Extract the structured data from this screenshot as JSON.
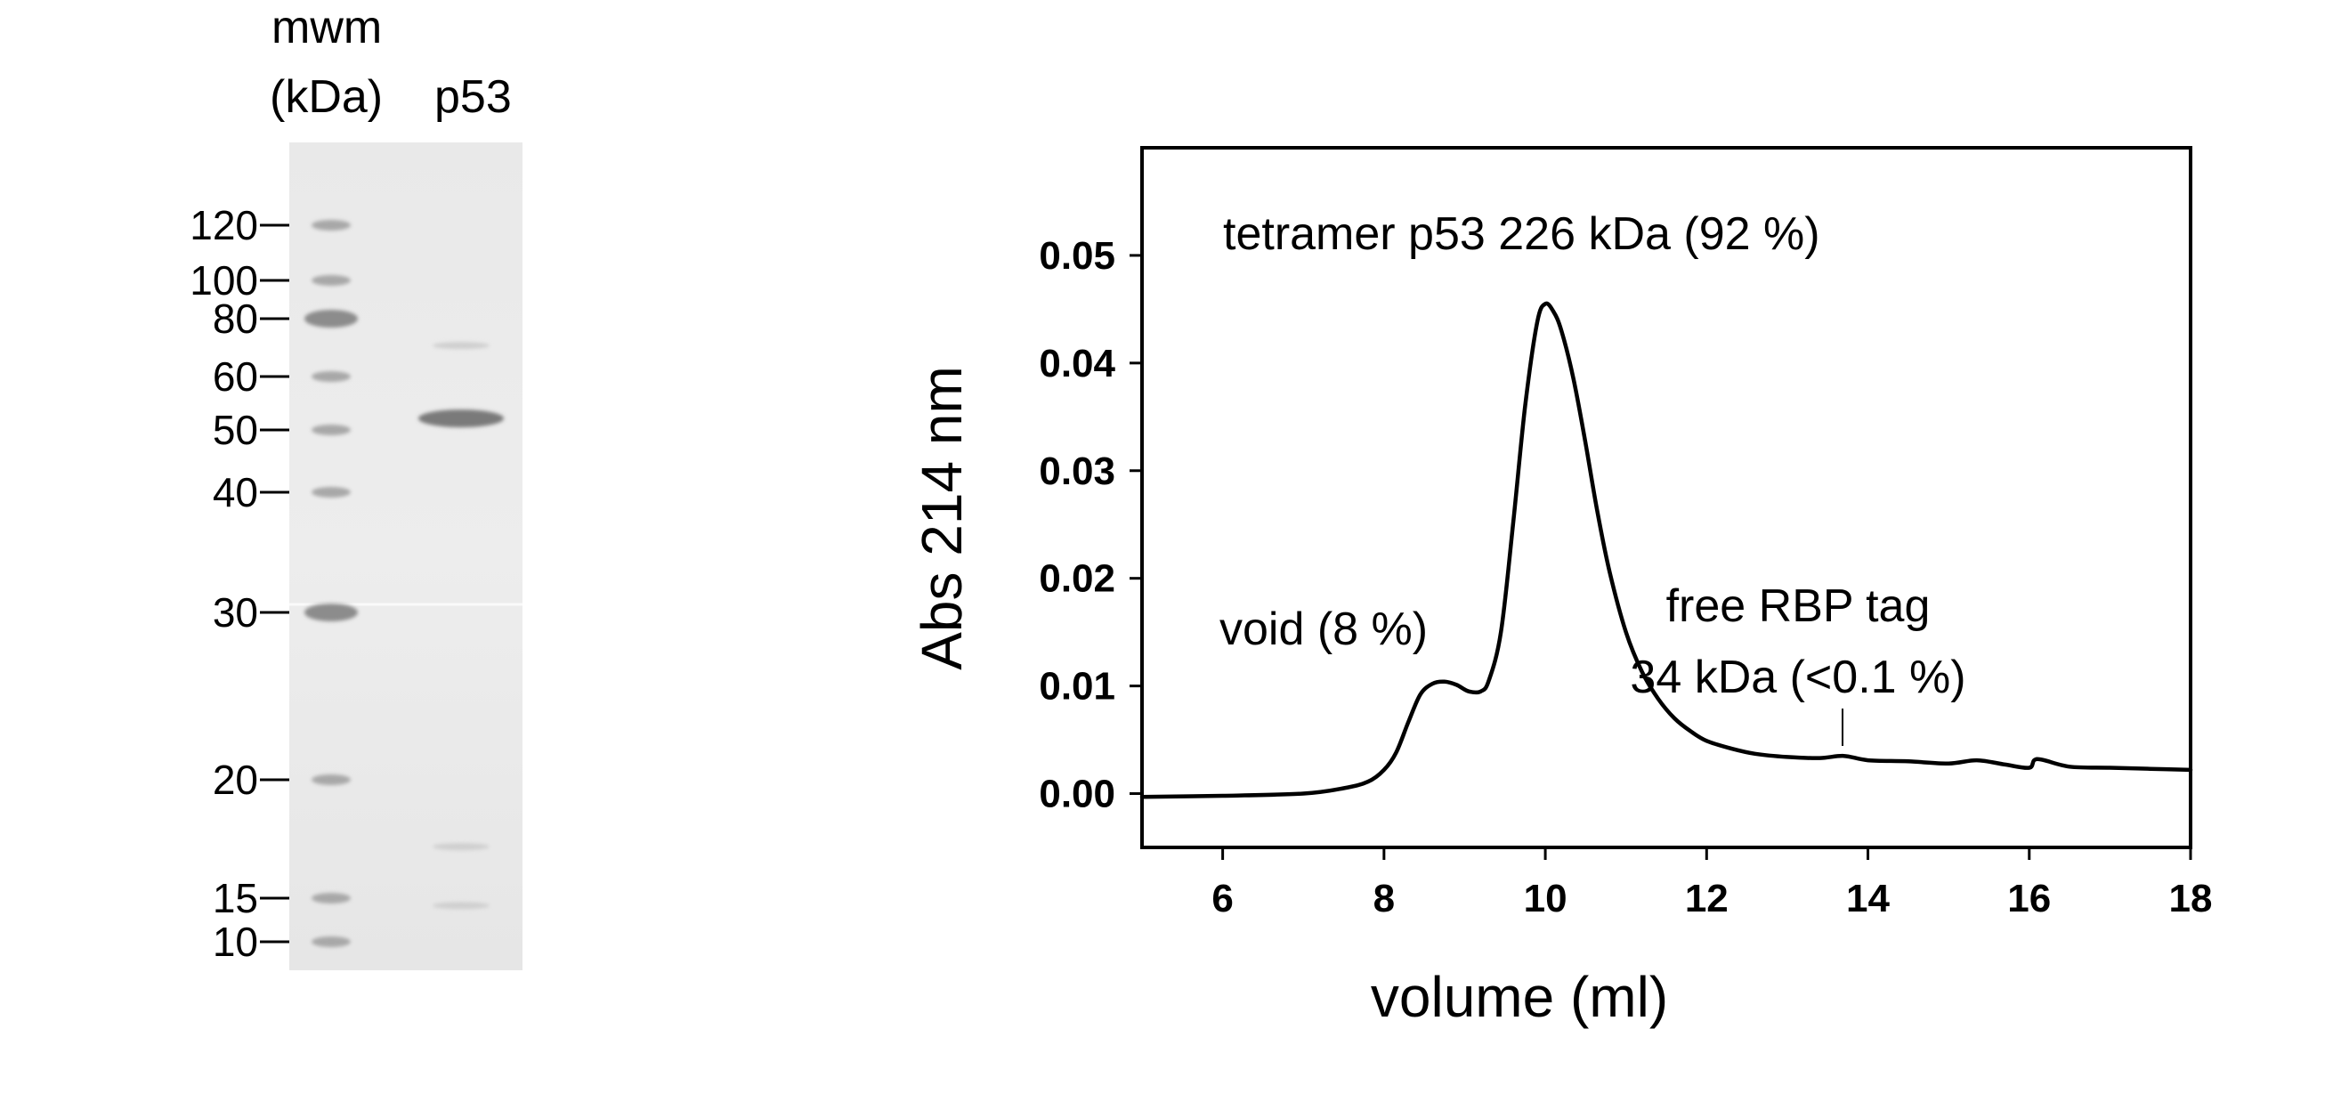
{
  "gel": {
    "header_mwm_line1": "mwm",
    "header_mwm_line2": "(kDa)",
    "header_lane": "p53",
    "markers": [
      {
        "label": "120",
        "kda": 120
      },
      {
        "label": "100",
        "kda": 100
      },
      {
        "label": "80",
        "kda": 80
      },
      {
        "label": "60",
        "kda": 60
      },
      {
        "label": "50",
        "kda": 50
      },
      {
        "label": "40",
        "kda": 40
      },
      {
        "label": "30",
        "kda": 30
      },
      {
        "label": "20",
        "kda": 20
      },
      {
        "label": "15",
        "kda": 15
      },
      {
        "label": "10",
        "kda": 10
      }
    ],
    "sample_bands_kda": [
      52,
      70,
      17,
      14
    ]
  },
  "chart_data": {
    "type": "line",
    "title": "",
    "xlabel": "volume (ml)",
    "ylabel": "Abs 214 nm",
    "xlim": [
      5,
      18
    ],
    "ylim": [
      -0.005,
      0.06
    ],
    "xticks": [
      6,
      8,
      10,
      12,
      14,
      16,
      18
    ],
    "xtick_labels": [
      "6",
      "8",
      "10",
      "12",
      "14",
      "16",
      "18"
    ],
    "yticks": [
      0.0,
      0.01,
      0.02,
      0.03,
      0.04,
      0.05
    ],
    "ytick_labels": [
      "0.00",
      "0.01",
      "0.02",
      "0.03",
      "0.04",
      "0.05"
    ],
    "grid": false,
    "series": [
      {
        "x": [
          5.0,
          6.0,
          7.0,
          7.5,
          7.8,
          8.0,
          8.15,
          8.3,
          8.45,
          8.6,
          8.75,
          8.9,
          9.05,
          9.2,
          9.3,
          9.45,
          9.6,
          9.75,
          9.9,
          10.0,
          10.1,
          10.2,
          10.35,
          10.5,
          10.65,
          10.8,
          11.0,
          11.2,
          11.4,
          11.6,
          11.8,
          12.0,
          12.3,
          12.6,
          13.0,
          13.4,
          13.7,
          14.0,
          14.5,
          15.0,
          15.35,
          15.7,
          16.0,
          16.1,
          16.5,
          17.0,
          17.5,
          18.0
        ],
        "y": [
          -0.0003,
          -0.0002,
          0.0,
          0.0005,
          0.0011,
          0.0022,
          0.0038,
          0.0066,
          0.0092,
          0.0102,
          0.0104,
          0.0101,
          0.0095,
          0.0095,
          0.0105,
          0.015,
          0.025,
          0.036,
          0.0438,
          0.0455,
          0.0448,
          0.043,
          0.0385,
          0.0325,
          0.026,
          0.0205,
          0.015,
          0.0113,
          0.0088,
          0.007,
          0.0058,
          0.0049,
          0.0042,
          0.0037,
          0.0034,
          0.0033,
          0.0035,
          0.0031,
          0.003,
          0.0028,
          0.0031,
          0.0027,
          0.0024,
          0.0032,
          0.0025,
          0.0024,
          0.0023,
          0.0022
        ]
      }
    ],
    "annotations": [
      {
        "text": "tetramer p53 226 kDa (92 %)",
        "x": 10.0,
        "y": 0.0455
      },
      {
        "text": "void (8 %)",
        "x": 8.7,
        "y": 0.0104
      },
      {
        "text": "free RBP tag",
        "x": 13.7,
        "y": 0.0035
      },
      {
        "text": "34 kDa (<0.1 %)",
        "x": 13.7,
        "y": 0.0035
      }
    ]
  }
}
